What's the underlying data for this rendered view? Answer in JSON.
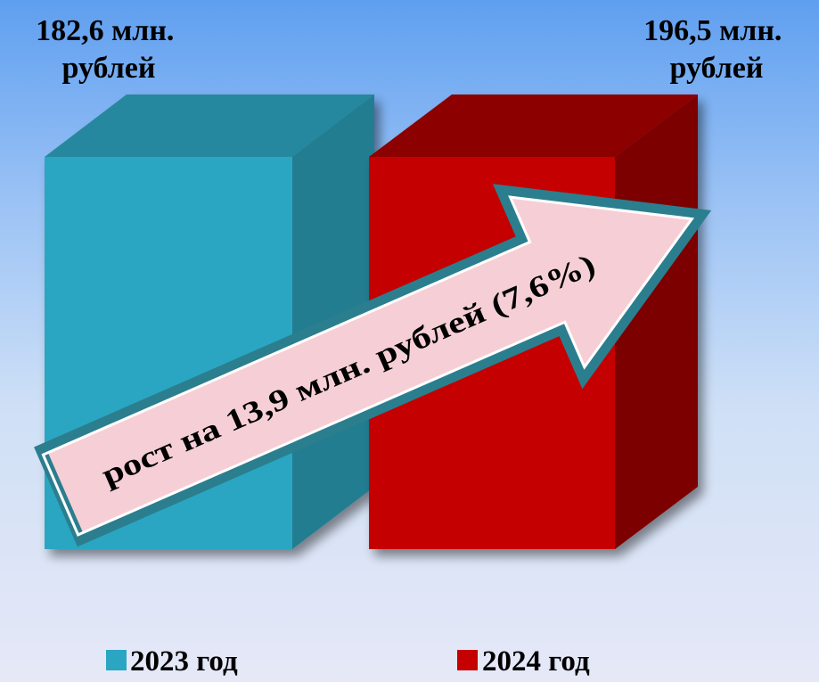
{
  "chart_data": {
    "type": "bar",
    "categories": [
      "2023 год",
      "2024 год"
    ],
    "values": [
      182.6,
      196.5
    ],
    "value_labels": [
      [
        "182,6 млн.",
        "рублей"
      ],
      [
        "196,5 млн.",
        "рублей"
      ]
    ],
    "colors": {
      "2023": "#2aa6c2",
      "2024": "#c40000"
    },
    "annotation": "рост на  13,9 млн. рублей (7,6%)",
    "legend": [
      "2023 год",
      "2024 год"
    ],
    "legend_position": "bottom",
    "grid": false
  }
}
